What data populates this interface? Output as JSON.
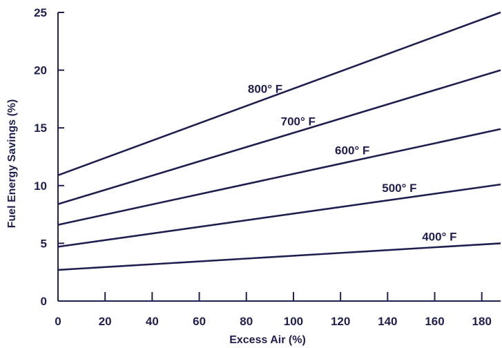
{
  "chart_data": {
    "type": "line",
    "title": "",
    "xlabel": "Excess Air (%)",
    "ylabel": "Fuel Energy Savings (%)",
    "xlim": [
      0,
      188
    ],
    "ylim": [
      0,
      25
    ],
    "x_ticks": [
      0,
      20,
      40,
      60,
      80,
      100,
      120,
      140,
      160,
      180
    ],
    "y_ticks": [
      0,
      5,
      10,
      15,
      20,
      25
    ],
    "grid": false,
    "legend": "none",
    "color": "#1f1f4f",
    "series": [
      {
        "name": "800° F",
        "x": [
          0,
          188
        ],
        "values": [
          10.9,
          25.0
        ]
      },
      {
        "name": "700° F",
        "x": [
          0,
          188
        ],
        "values": [
          8.4,
          20.0
        ]
      },
      {
        "name": "600° F",
        "x": [
          0,
          188
        ],
        "values": [
          6.6,
          14.9
        ]
      },
      {
        "name": "500° F",
        "x": [
          0,
          188
        ],
        "values": [
          4.7,
          10.1
        ]
      },
      {
        "name": "400° F",
        "x": [
          0,
          188
        ],
        "values": [
          2.7,
          5.0
        ]
      }
    ]
  }
}
